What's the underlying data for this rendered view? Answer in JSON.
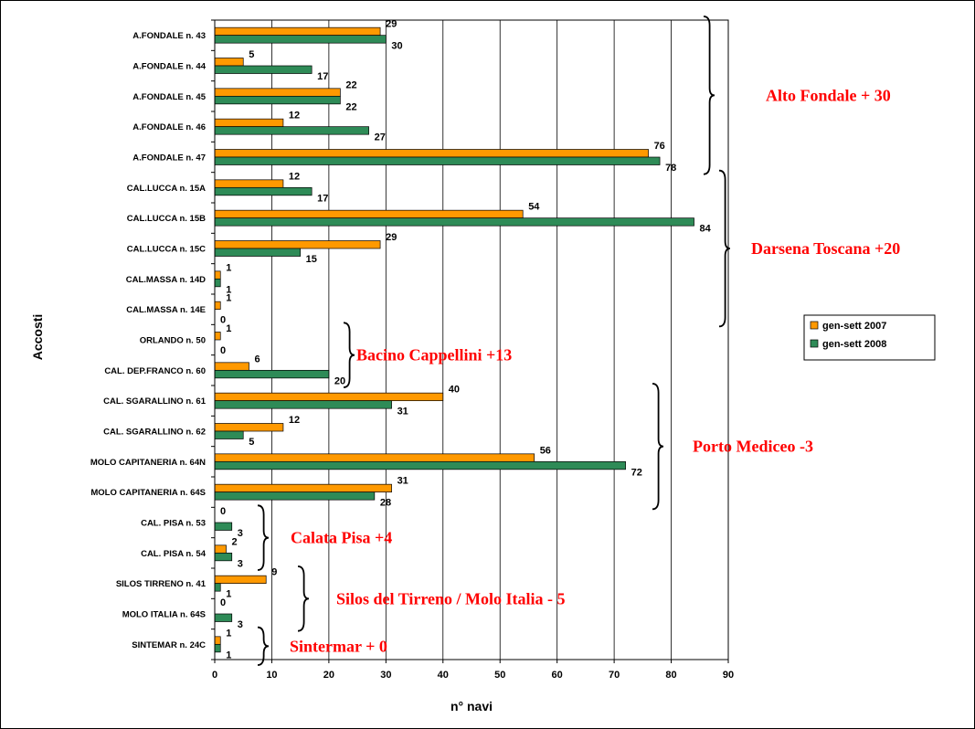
{
  "chart_data": {
    "type": "bar",
    "orientation": "horizontal",
    "xlabel": "n° navi",
    "ylabel": "Accosti",
    "xlim": [
      0,
      90
    ],
    "xticks": [
      0,
      10,
      20,
      30,
      40,
      50,
      60,
      70,
      80,
      90
    ],
    "grid": "vertical",
    "legend_position": "right",
    "categories": [
      "A.FONDALE n. 43",
      "A.FONDALE n. 44",
      "A.FONDALE n. 45",
      "A.FONDALE n. 46",
      "A.FONDALE n. 47",
      "CAL.LUCCA n. 15A",
      "CAL.LUCCA n. 15B",
      "CAL.LUCCA n. 15C",
      "CAL.MASSA n. 14D",
      "CAL.MASSA n. 14E",
      "ORLANDO n. 50",
      "CAL. DEP.FRANCO n. 60",
      "CAL. SGARALLINO n. 61",
      "CAL. SGARALLINO n. 62",
      "MOLO CAPITANERIA n. 64N",
      "MOLO CAPITANERIA n. 64S",
      "CAL. PISA n. 53",
      "CAL. PISA n. 54",
      "SILOS TIRRENO n. 41",
      "MOLO ITALIA n. 64S",
      "SINTEMAR n. 24C"
    ],
    "series": [
      {
        "name": "gen-sett 2007",
        "color": "#ff9900",
        "values": [
          29,
          5,
          22,
          12,
          76,
          12,
          54,
          29,
          1,
          1,
          1,
          6,
          40,
          12,
          56,
          31,
          0,
          2,
          9,
          0,
          1
        ]
      },
      {
        "name": "gen-sett 2008",
        "color": "#2e8b57",
        "values": [
          30,
          17,
          22,
          27,
          78,
          17,
          84,
          15,
          1,
          0,
          0,
          20,
          31,
          5,
          72,
          28,
          3,
          3,
          1,
          3,
          1
        ]
      }
    ],
    "annotations": [
      {
        "text": "Alto Fondale + 30",
        "from": 0,
        "to": 4
      },
      {
        "text": "Darsena Toscana +20",
        "from": 5,
        "to": 9
      },
      {
        "text": "Bacino Cappellini +13",
        "from": 10,
        "to": 11
      },
      {
        "text": "Porto Mediceo -3",
        "from": 12,
        "to": 15
      },
      {
        "text": "Calata Pisa +4",
        "from": 16,
        "to": 17
      },
      {
        "text": "Silos del Tirreno / Molo Italia - 5",
        "from": 18,
        "to": 19
      },
      {
        "text": "Sintermar + 0",
        "from": 20,
        "to": 20
      }
    ]
  }
}
